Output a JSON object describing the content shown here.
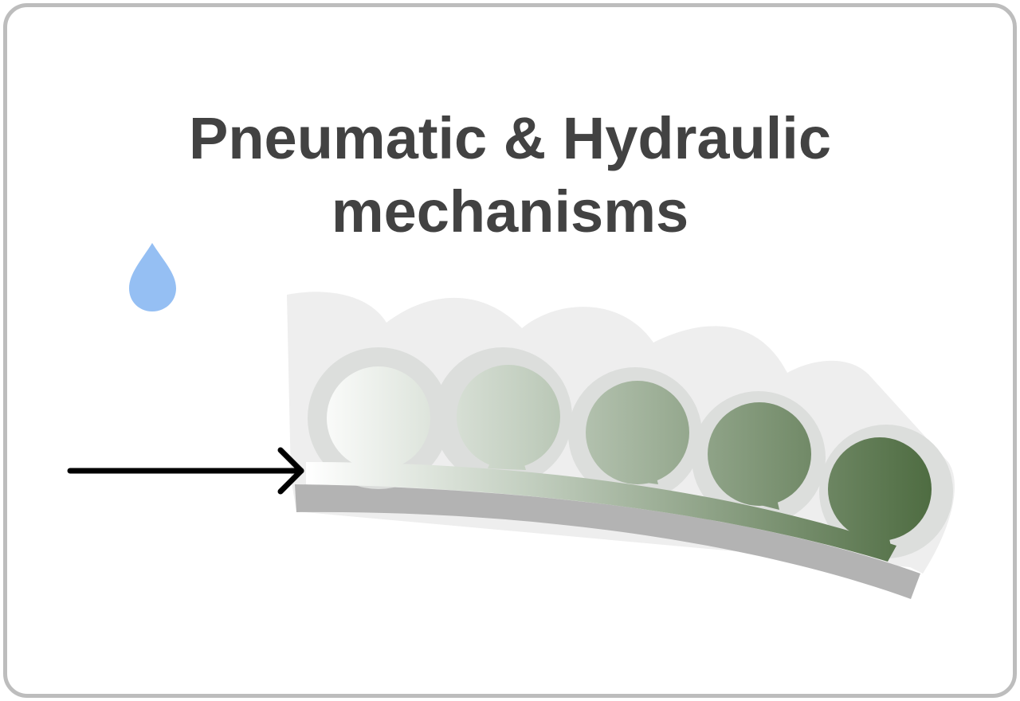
{
  "title": {
    "line1": "Pneumatic & Hydraulic",
    "line2": "mechanisms"
  },
  "icons": {
    "droplet": "water-drop-icon",
    "arrow": "right-arrow-icon"
  },
  "colors": {
    "title": "#424242",
    "border": "#bdbdbd",
    "drop": "#95bff3",
    "gradient_start": "#ffffff",
    "gradient_end": "#4d6b40",
    "base_strip": "#b3b3b3",
    "bubble_ring": "#dcdedc",
    "backdrop": "#eeeeee"
  },
  "chambers": 5
}
